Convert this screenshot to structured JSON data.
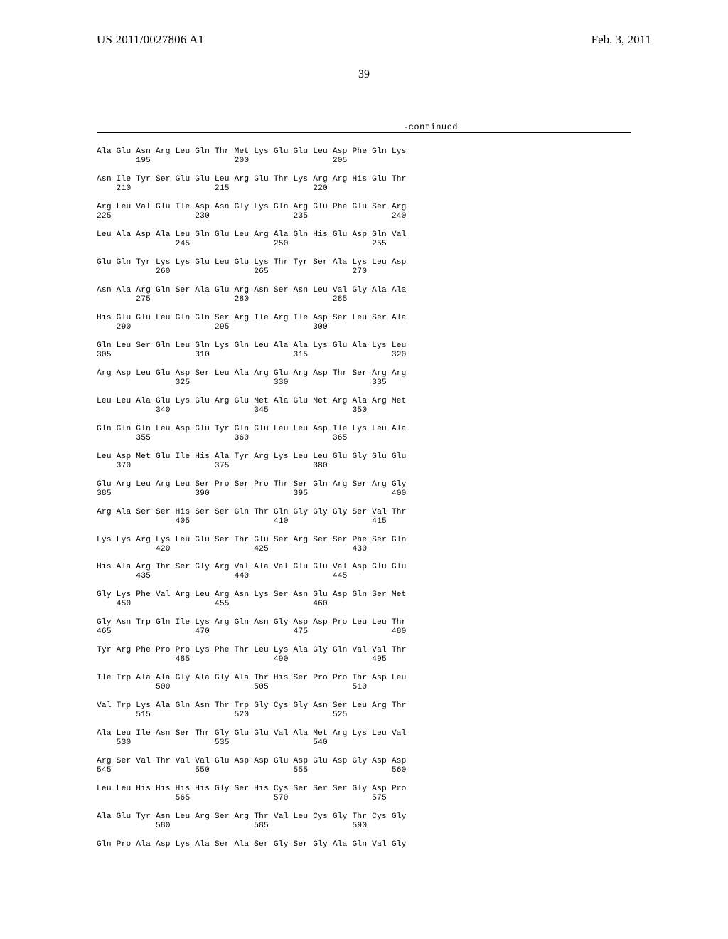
{
  "header": {
    "publication_number": "US 2011/0027806 A1",
    "publication_date": "Feb. 3, 2011"
  },
  "page_number": "39",
  "continued_label": "-continued",
  "sequence_lines": [
    "Ala Glu Asn Arg Leu Gln Thr Met Lys Glu Glu Leu Asp Phe Gln Lys",
    "        195                 200                 205",
    "",
    "Asn Ile Tyr Ser Glu Glu Leu Arg Glu Thr Lys Arg Arg His Glu Thr",
    "    210                 215                 220",
    "",
    "Arg Leu Val Glu Ile Asp Asn Gly Lys Gln Arg Glu Phe Glu Ser Arg",
    "225                 230                 235                 240",
    "",
    "Leu Ala Asp Ala Leu Gln Glu Leu Arg Ala Gln His Glu Asp Gln Val",
    "                245                 250                 255",
    "",
    "Glu Gln Tyr Lys Lys Glu Leu Glu Lys Thr Tyr Ser Ala Lys Leu Asp",
    "            260                 265                 270",
    "",
    "Asn Ala Arg Gln Ser Ala Glu Arg Asn Ser Asn Leu Val Gly Ala Ala",
    "        275                 280                 285",
    "",
    "His Glu Glu Leu Gln Gln Ser Arg Ile Arg Ile Asp Ser Leu Ser Ala",
    "    290                 295                 300",
    "",
    "Gln Leu Ser Gln Leu Gln Lys Gln Leu Ala Ala Lys Glu Ala Lys Leu",
    "305                 310                 315                 320",
    "",
    "Arg Asp Leu Glu Asp Ser Leu Ala Arg Glu Arg Asp Thr Ser Arg Arg",
    "                325                 330                 335",
    "",
    "Leu Leu Ala Glu Lys Glu Arg Glu Met Ala Glu Met Arg Ala Arg Met",
    "            340                 345                 350",
    "",
    "Gln Gln Gln Leu Asp Glu Tyr Gln Glu Leu Leu Asp Ile Lys Leu Ala",
    "        355                 360                 365",
    "",
    "Leu Asp Met Glu Ile His Ala Tyr Arg Lys Leu Leu Glu Gly Glu Glu",
    "    370                 375                 380",
    "",
    "Glu Arg Leu Arg Leu Ser Pro Ser Pro Thr Ser Gln Arg Ser Arg Gly",
    "385                 390                 395                 400",
    "",
    "Arg Ala Ser Ser His Ser Ser Gln Thr Gln Gly Gly Gly Ser Val Thr",
    "                405                 410                 415",
    "",
    "Lys Lys Arg Lys Leu Glu Ser Thr Glu Ser Arg Ser Ser Phe Ser Gln",
    "            420                 425                 430",
    "",
    "His Ala Arg Thr Ser Gly Arg Val Ala Val Glu Glu Val Asp Glu Glu",
    "        435                 440                 445",
    "",
    "Gly Lys Phe Val Arg Leu Arg Asn Lys Ser Asn Glu Asp Gln Ser Met",
    "    450                 455                 460",
    "",
    "Gly Asn Trp Gln Ile Lys Arg Gln Asn Gly Asp Asp Pro Leu Leu Thr",
    "465                 470                 475                 480",
    "",
    "Tyr Arg Phe Pro Pro Lys Phe Thr Leu Lys Ala Gly Gln Val Val Thr",
    "                485                 490                 495",
    "",
    "Ile Trp Ala Ala Gly Ala Gly Ala Thr His Ser Pro Pro Thr Asp Leu",
    "            500                 505                 510",
    "",
    "Val Trp Lys Ala Gln Asn Thr Trp Gly Cys Gly Asn Ser Leu Arg Thr",
    "        515                 520                 525",
    "",
    "Ala Leu Ile Asn Ser Thr Gly Glu Glu Val Ala Met Arg Lys Leu Val",
    "    530                 535                 540",
    "",
    "Arg Ser Val Thr Val Val Glu Asp Asp Glu Asp Glu Asp Gly Asp Asp",
    "545                 550                 555                 560",
    "",
    "Leu Leu His His His His Gly Ser His Cys Ser Ser Ser Gly Asp Pro",
    "                565                 570                 575",
    "",
    "Ala Glu Tyr Asn Leu Arg Ser Arg Thr Val Leu Cys Gly Thr Cys Gly",
    "            580                 585                 590",
    "",
    "Gln Pro Ala Asp Lys Ala Ser Ala Ser Gly Ser Gly Ala Gln Val Gly"
  ]
}
